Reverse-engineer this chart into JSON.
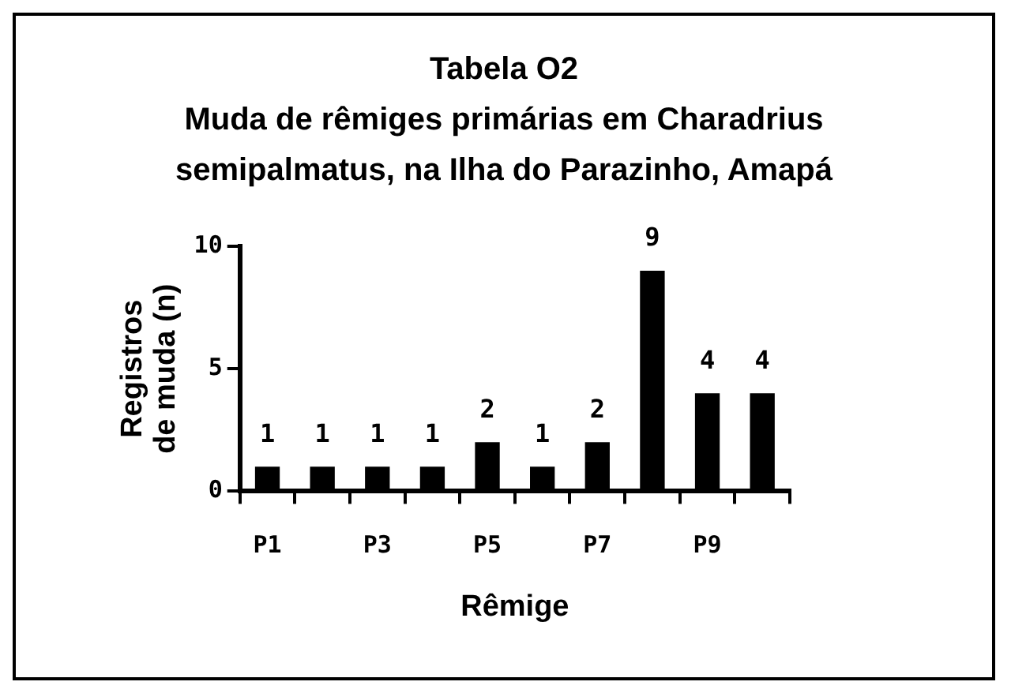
{
  "chart_data": {
    "type": "bar",
    "title": "Tabela O2",
    "subtitle": "Muda de rêmiges primárias em Charadrius semipalmatus, na Ilha do Parazinho, Amapá",
    "xlabel": "Rêmige",
    "ylabel": "Registros\nde muda (n)",
    "categories": [
      "P1",
      null,
      "P3",
      null,
      "P5",
      null,
      "P7",
      null,
      "P9",
      null
    ],
    "values": [
      1,
      1,
      1,
      1,
      2,
      1,
      2,
      9,
      4,
      4
    ],
    "color": "#000000",
    "ylim": [
      0,
      10
    ],
    "yticks": [
      0,
      5,
      10
    ],
    "data_labels": true
  }
}
